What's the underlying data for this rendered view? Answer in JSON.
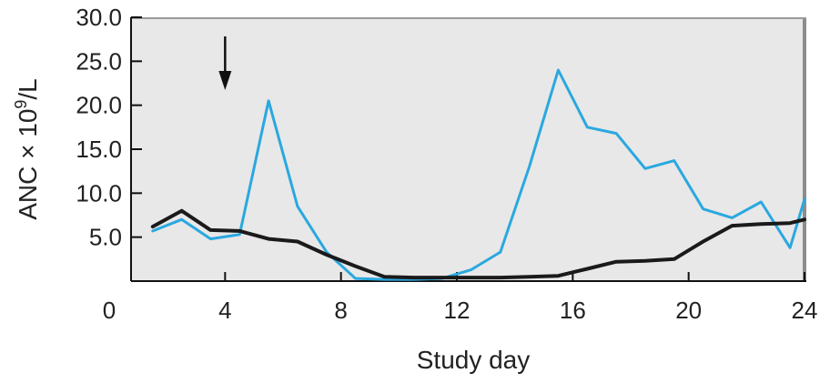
{
  "chart_data": {
    "type": "line",
    "xlabel": "Study day",
    "ylabel": {
      "prefix": "ANC × 10",
      "exponent": "9",
      "suffix": "/L"
    },
    "xlim": [
      0,
      24
    ],
    "ylim": [
      0,
      30
    ],
    "x_ticks": [
      "0",
      "4",
      "8",
      "12",
      "16",
      "20",
      "24"
    ],
    "y_ticks": [
      "5.0",
      "10.0",
      "15.0",
      "20.0",
      "25.0",
      "30.0"
    ],
    "plot_background": "#e8e8e8",
    "grid": false,
    "annotation": {
      "type": "arrow",
      "x": 4,
      "pointing": "down"
    },
    "series": [
      {
        "color": "#2aa8df",
        "x": [
          1.5,
          2.5,
          3.5,
          4.5,
          5.5,
          6.5,
          7.5,
          8.5,
          9.5,
          10.5,
          11.5,
          12.5,
          13.5,
          14.5,
          15.5,
          16.5,
          17.5,
          18.5,
          19.5,
          20.5,
          21.5,
          22.5,
          23.5,
          24.0
        ],
        "values": [
          5.7,
          7.0,
          4.8,
          5.3,
          20.5,
          8.5,
          3.3,
          0.3,
          0.2,
          0.2,
          0.3,
          1.3,
          3.3,
          13.0,
          24.0,
          17.5,
          16.8,
          12.8,
          13.7,
          8.2,
          7.2,
          9.0,
          3.8,
          9.3
        ]
      },
      {
        "color": "#1a1a1a",
        "x": [
          1.5,
          2.5,
          3.5,
          4.5,
          5.5,
          6.5,
          7.5,
          8.5,
          9.5,
          10.5,
          11.5,
          12.5,
          13.5,
          14.5,
          15.5,
          16.5,
          17.5,
          18.5,
          19.5,
          20.5,
          21.5,
          22.5,
          23.5,
          24.0
        ],
        "values": [
          6.2,
          8.0,
          5.8,
          5.7,
          4.8,
          4.5,
          3.0,
          1.7,
          0.5,
          0.4,
          0.4,
          0.4,
          0.4,
          0.5,
          0.6,
          1.4,
          2.2,
          2.3,
          2.5,
          4.5,
          6.3,
          6.5,
          6.6,
          7.0
        ]
      }
    ]
  }
}
